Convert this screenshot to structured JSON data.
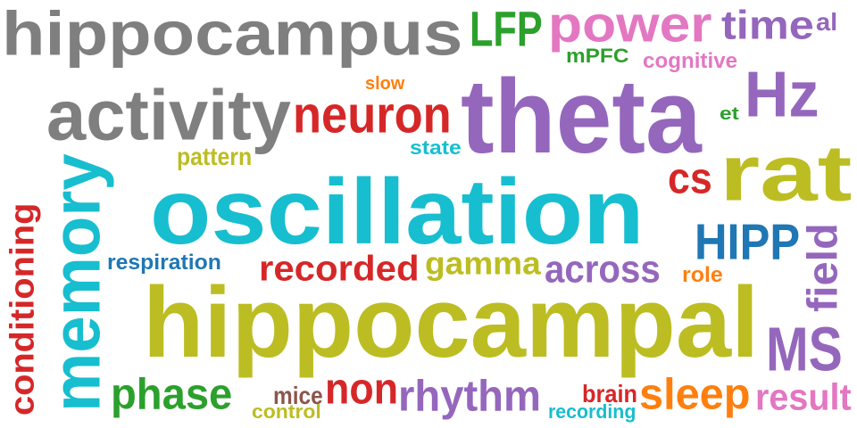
{
  "words": [
    {
      "text": "hippocampus",
      "color": "#7f7f7f"
    },
    {
      "text": "LFP",
      "color": "#2ca02c"
    },
    {
      "text": "power",
      "color": "#e377c2"
    },
    {
      "text": "time",
      "color": "#9467bd"
    },
    {
      "text": "al",
      "color": "#9467bd"
    },
    {
      "text": "mPFC",
      "color": "#2ca02c"
    },
    {
      "text": "cognitive",
      "color": "#e377c2"
    },
    {
      "text": "activity",
      "color": "#7f7f7f"
    },
    {
      "text": "slow",
      "color": "#ff7f0e"
    },
    {
      "text": "theta",
      "color": "#9467bd"
    },
    {
      "text": "Hz",
      "color": "#9467bd"
    },
    {
      "text": "neuron",
      "color": "#d62728"
    },
    {
      "text": "et",
      "color": "#2ca02c"
    },
    {
      "text": "state",
      "color": "#17becf"
    },
    {
      "text": "pattern",
      "color": "#bcbd22"
    },
    {
      "text": "memory",
      "color": "#17becf"
    },
    {
      "text": "cs",
      "color": "#d62728"
    },
    {
      "text": "rat",
      "color": "#bcbd22"
    },
    {
      "text": "oscillation",
      "color": "#17becf"
    },
    {
      "text": "conditioning",
      "color": "#d62728"
    },
    {
      "text": "HIPP",
      "color": "#1f77b4"
    },
    {
      "text": "field",
      "color": "#9467bd"
    },
    {
      "text": "respiration",
      "color": "#1f77b4"
    },
    {
      "text": "recorded",
      "color": "#d62728"
    },
    {
      "text": "gamma",
      "color": "#bcbd22"
    },
    {
      "text": "across",
      "color": "#9467bd"
    },
    {
      "text": "role",
      "color": "#ff7f0e"
    },
    {
      "text": "hippocampal",
      "color": "#bcbd22"
    },
    {
      "text": "MS",
      "color": "#9467bd"
    },
    {
      "text": "phase",
      "color": "#2ca02c"
    },
    {
      "text": "mice",
      "color": "#8c564b"
    },
    {
      "text": "non",
      "color": "#d62728"
    },
    {
      "text": "rhythm",
      "color": "#9467bd"
    },
    {
      "text": "brain",
      "color": "#d62728"
    },
    {
      "text": "sleep",
      "color": "#ff7f0e"
    },
    {
      "text": "result",
      "color": "#e377c2"
    },
    {
      "text": "control",
      "color": "#bcbd22"
    },
    {
      "text": "recording",
      "color": "#17becf"
    }
  ]
}
